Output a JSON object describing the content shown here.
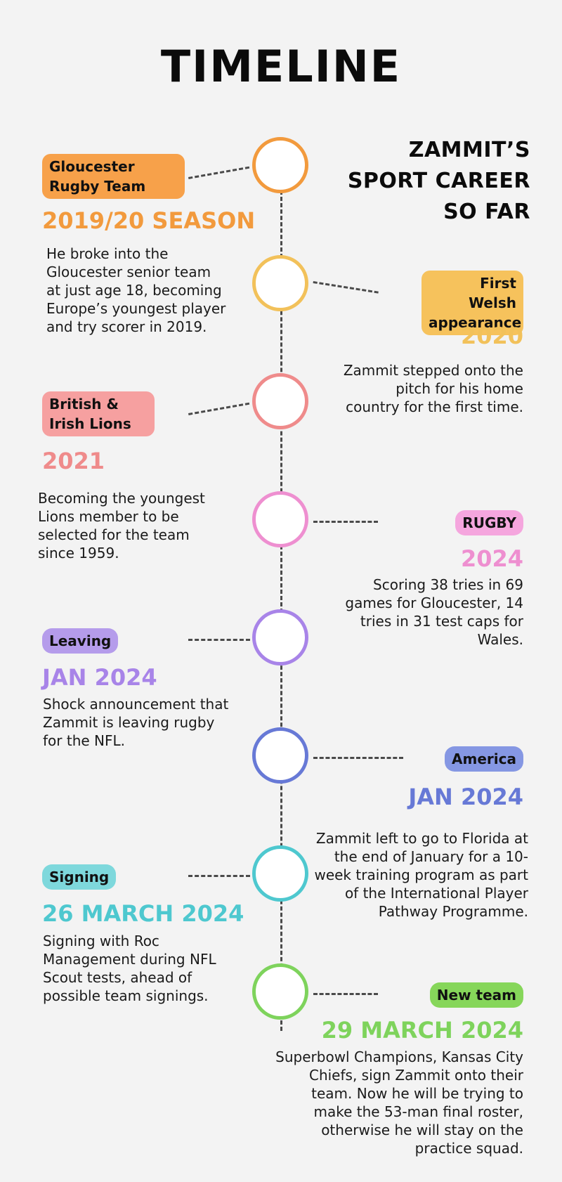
{
  "title": "TIMELINE",
  "subtitle": [
    "ZAMMIT’S",
    "SPORT CAREER",
    "SO FAR"
  ],
  "events": [
    {
      "tag": "Gloucester Rugby Team",
      "date": "2019/20 SEASON",
      "text": "He broke into the Gloucester senior team at just age 18, becoming Europe’s youngest player and try scorer in 2019.",
      "color": "#f29a3d",
      "tag_bg": "#f7a14a"
    },
    {
      "tag": "First Welsh appearance",
      "date": "2020",
      "text": "Zammit stepped onto the pitch for his home country for the first time.",
      "color": "#f2c15a",
      "tag_bg": "#f6c25c"
    },
    {
      "tag": "British & Irish Lions",
      "date": "2021",
      "text": "Becoming the youngest Lions member to be selected for the team since 1959.",
      "color": "#ef8b8b",
      "tag_bg": "#f6a0a0"
    },
    {
      "tag": "RUGBY",
      "date": "2024",
      "text": "Scoring  38 tries in 69 games for Gloucester, 14 tries in 31 test caps for Wales.",
      "color": "#ee8fd0",
      "tag_bg": "#f5a6de"
    },
    {
      "tag": "Leaving",
      "date": "JAN 2024",
      "text": "Shock announcement that Zammit is leaving rugby for the NFL.",
      "color": "#a884e8",
      "tag_bg": "#b59ceb"
    },
    {
      "tag": "America",
      "date": "JAN 2024",
      "text": "Zammit left to go to Florida at the end of January for a 10-week training program as part of the International Player Pathway Programme.",
      "color": "#6779d6",
      "tag_bg": "#8597e3"
    },
    {
      "tag": "Signing",
      "date": "26 MARCH 2024",
      "text": "Signing with Roc Management during NFL Scout tests, ahead of possible team signings.",
      "color": "#4ec8cf",
      "tag_bg": "#7ed8dc"
    },
    {
      "tag": "New team",
      "date": "29 MARCH 2024",
      "text": "Superbowl Champions, Kansas City Chiefs, sign Zammit onto their team.  Now he will be trying to make the 53-man final roster, otherwise he will stay on the practice squad.",
      "color": "#7ed35c",
      "tag_bg": "#86d65a"
    }
  ]
}
